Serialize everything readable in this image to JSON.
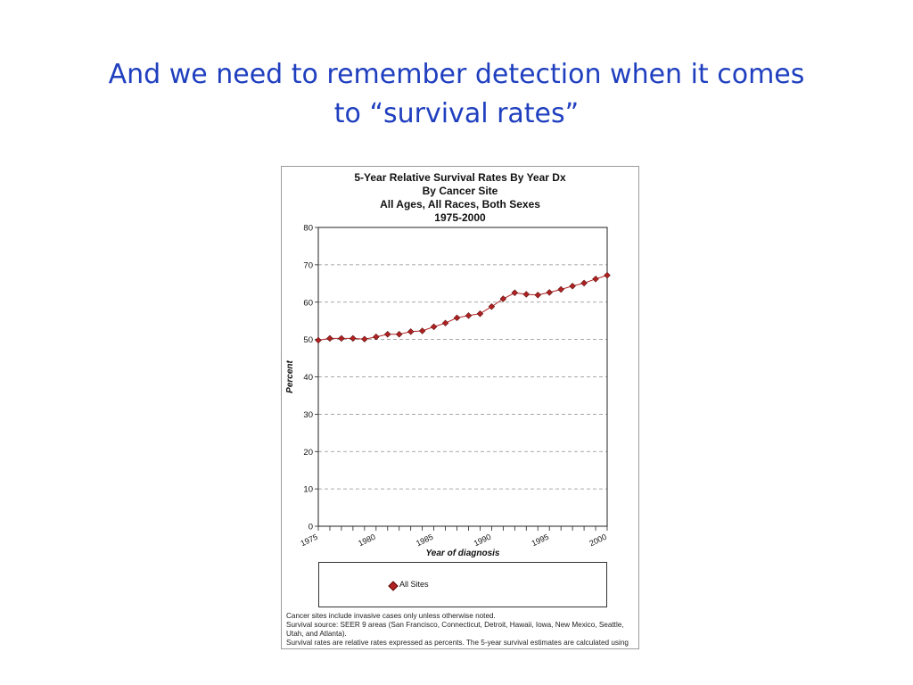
{
  "slide": {
    "title_line1": "And we need to remember detection when it comes",
    "title_line2": "to “survival rates”"
  },
  "colors": {
    "title": "#1f3fbf",
    "series": "#b22222",
    "grid": "#8c8c8c"
  },
  "chart_data": {
    "type": "line",
    "title": [
      "5-Year Relative Survival Rates By Year Dx",
      "By Cancer Site",
      "All Ages, All Races, Both Sexes",
      "1975-2000"
    ],
    "xlabel": "Year of diagnosis",
    "ylabel": "Percent",
    "ylim": [
      0,
      80
    ],
    "xlim": [
      1975,
      2000
    ],
    "yticks": [
      0,
      10,
      20,
      30,
      40,
      50,
      60,
      70,
      80
    ],
    "xtick_labels": [
      "1975",
      "1980",
      "1985",
      "1990",
      "1995",
      "2000"
    ],
    "grid": "horizontal dashed",
    "legend_position": "bottom",
    "series": [
      {
        "name": "All Sites",
        "x": [
          1975,
          1976,
          1977,
          1978,
          1979,
          1980,
          1981,
          1982,
          1983,
          1984,
          1985,
          1986,
          1987,
          1988,
          1989,
          1990,
          1991,
          1992,
          1993,
          1994,
          1995,
          1996,
          1997,
          1998,
          1999,
          2000
        ],
        "values": [
          49.8,
          50.3,
          50.3,
          50.3,
          50.1,
          50.7,
          51.4,
          51.4,
          52.1,
          52.3,
          53.4,
          54.4,
          55.8,
          56.4,
          56.9,
          58.8,
          60.9,
          62.5,
          62.1,
          61.9,
          62.6,
          63.4,
          64.3,
          65.1,
          66.2,
          67.2
        ]
      }
    ]
  },
  "footnotes": [
    "Cancer sites include invasive cases only unless otherwise noted.",
    "Survival source: SEER 9 areas (San Francisco, Connecticut, Detroit, Hawaii, Iowa, New Mexico, Seattle, Utah, and Atlanta).",
    "Survival rates are relative rates expressed as percents. The 5-year survival estimates are calculated using monthly intervals."
  ]
}
